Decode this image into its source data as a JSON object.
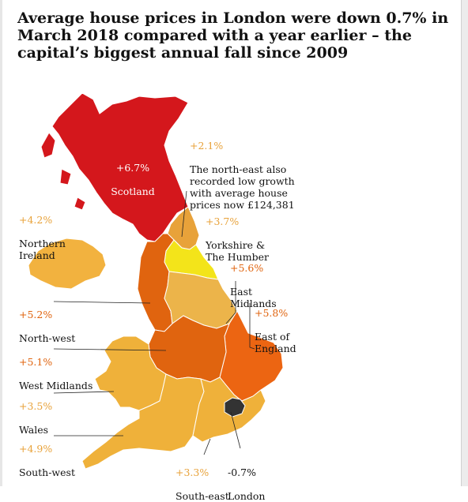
{
  "headline": "Average house prices in London were down 0.7% in March 2018 compared with a year earlier – the capital’s biggest annual fall since 2009",
  "colors": {
    "background": "#ffffff",
    "scotland": "#d4171c",
    "north_east": "#e8a23a",
    "yorkshire": "#f3e41a",
    "east_midlands": "#ecb44a",
    "northern_ireland": "#f2b23f",
    "north_west": "#e0640f",
    "west_midlands": "#e0640f",
    "east_of_england": "#ec6512",
    "wales": "#efb13a",
    "south_west": "#efb13a",
    "south_east": "#efb13a",
    "london": "#333333",
    "positive_value_text": "#e8a23a",
    "strong_value_text": "#e0640f"
  },
  "regions": [
    {
      "key": "scotland",
      "value": "+6.7%",
      "name": "Scotland",
      "change_pct": 6.7
    },
    {
      "key": "north_east",
      "value": "+2.1%",
      "name": "The north-east also recorded low growth with average house prices now £124,381",
      "change_pct": 2.1
    },
    {
      "key": "northern_ireland",
      "value": "+4.2%",
      "name": "Northern Ireland",
      "change_pct": 4.2
    },
    {
      "key": "yorkshire",
      "value": "+3.7%",
      "name": "Yorkshire & The Humber",
      "change_pct": 3.7
    },
    {
      "key": "east_midlands",
      "value": "+5.6%",
      "name": "East Midlands",
      "change_pct": 5.6
    },
    {
      "key": "north_west",
      "value": "+5.2%",
      "name": "North-west",
      "change_pct": 5.2
    },
    {
      "key": "east_of_england",
      "value": "+5.8%",
      "name": "East of England",
      "change_pct": 5.8
    },
    {
      "key": "west_midlands",
      "value": "+5.1%",
      "name": "West Midlands",
      "change_pct": 5.1
    },
    {
      "key": "wales",
      "value": "+3.5%",
      "name": "Wales",
      "change_pct": 3.5
    },
    {
      "key": "south_west",
      "value": "+4.9%",
      "name": "South-west",
      "change_pct": 4.9
    },
    {
      "key": "south_east",
      "value": "+3.3%",
      "name": "South-east",
      "change_pct": 3.3
    },
    {
      "key": "london",
      "value": "-0.7%",
      "name": "London",
      "change_pct": -0.7
    }
  ]
}
